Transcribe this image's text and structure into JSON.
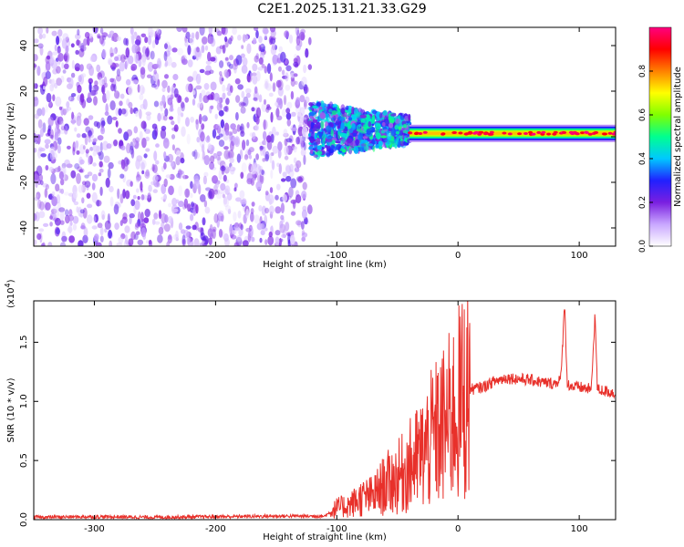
{
  "page_title": "C2E1.2025.131.21.33.G29",
  "chart_data": [
    {
      "type": "heatmap",
      "xlabel": "Height of straight line (km)",
      "ylabel": "Frequency (Hz)",
      "xlim": [
        -350,
        130
      ],
      "ylim": [
        -48,
        48
      ],
      "x_ticks": [
        -300,
        -200,
        -100,
        0,
        100
      ],
      "x_tick_labels": [
        "-300",
        "-200",
        "-100",
        "0",
        "100"
      ],
      "y_ticks": [
        -40,
        -20,
        0,
        20,
        40
      ],
      "y_tick_labels": [
        "-40",
        "-20",
        "0",
        "20",
        "40"
      ],
      "colorbar": {
        "label": "Normalized spectral amplitude",
        "range": [
          0,
          1
        ],
        "ticks": [
          0.0,
          0.2,
          0.4,
          0.6,
          0.8
        ],
        "tick_labels": [
          "0.0",
          "0.2",
          "0.4",
          "0.6",
          "0.8"
        ],
        "colors": [
          "#ffffff",
          "#c9a7ff",
          "#7a1fe0",
          "#2020ff",
          "#00c8ff",
          "#00ff90",
          "#80ff00",
          "#ffff00",
          "#ff8000",
          "#ff0000",
          "#ff0080"
        ]
      },
      "regions": [
        {
          "x_range": [
            -350,
            -122
          ],
          "freq_range": [
            -48,
            48
          ],
          "amplitude": 0.1,
          "description_level": "noise"
        },
        {
          "x_range": [
            -122,
            -40
          ],
          "freq_center": 3,
          "freq_halfwidth": 12,
          "amplitude": 0.35
        },
        {
          "x_range": [
            -40,
            130
          ],
          "freq_center": 1.5,
          "freq_halfwidth": 2,
          "amplitude": 0.75
        }
      ],
      "grid": false
    },
    {
      "type": "line",
      "xlabel": "Height of straight line (km)",
      "ylabel": "SNR (10 * v/v)",
      "y_multiplier_label": "(x10",
      "y_multiplier_exp": "4",
      "y_multiplier_close": ")",
      "xlim": [
        -350,
        130
      ],
      "ylim": [
        0,
        1.85
      ],
      "x_ticks": [
        -300,
        -200,
        -100,
        0,
        100
      ],
      "x_tick_labels": [
        "-300",
        "-200",
        "-100",
        "0",
        "100"
      ],
      "y_ticks": [
        0.0,
        0.5,
        1.0,
        1.5
      ],
      "y_tick_labels": [
        "0.0",
        "0.5",
        "1.0",
        "1.5"
      ],
      "color": "#e8302a",
      "series": [
        {
          "x": [
            -350,
            -300,
            -250,
            -200,
            -150,
            -110,
            -100,
            -90,
            -80,
            -70,
            -60,
            -50,
            -40,
            -30,
            -20,
            -10,
            0,
            5,
            10,
            20,
            30,
            40,
            50,
            60,
            70,
            80,
            85,
            88,
            90,
            95,
            100,
            110,
            113,
            115,
            120,
            130
          ],
          "y": [
            0.02,
            0.025,
            0.02,
            0.025,
            0.03,
            0.03,
            0.1,
            0.12,
            0.18,
            0.2,
            0.3,
            0.35,
            0.45,
            0.55,
            0.7,
            0.8,
            0.95,
            1.05,
            1.1,
            1.12,
            1.17,
            1.2,
            1.19,
            1.18,
            1.16,
            1.15,
            1.2,
            1.85,
            1.15,
            1.12,
            1.12,
            1.1,
            1.75,
            1.1,
            1.09,
            1.07
          ]
        }
      ],
      "grid": false
    }
  ]
}
